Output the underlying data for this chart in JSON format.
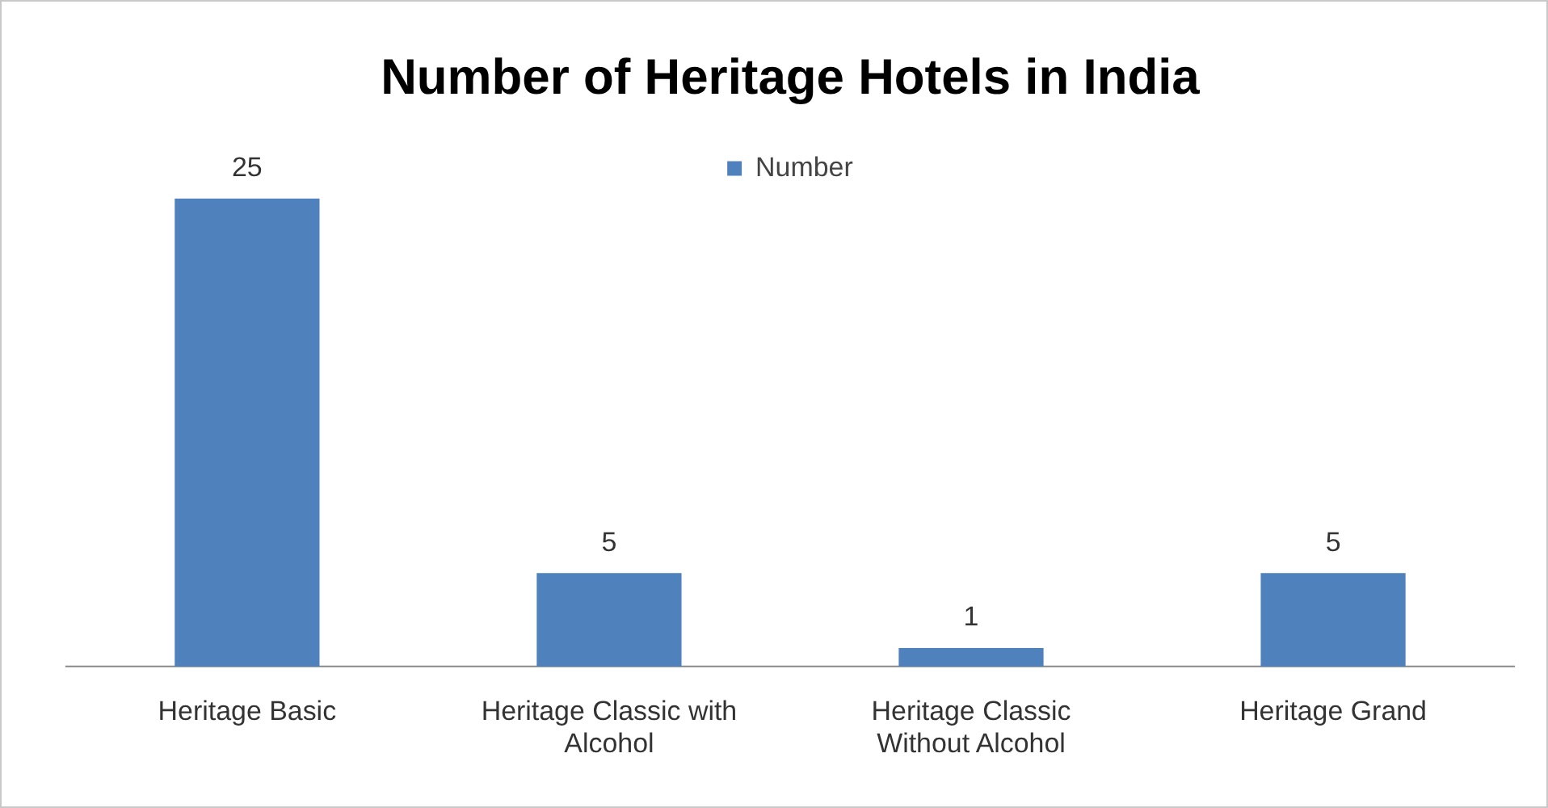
{
  "chart_data": {
    "type": "bar",
    "title": "Number of Heritage Hotels in India",
    "categories": [
      "Heritage Basic",
      "Heritage Classic with Alcohol",
      "Heritage Classic Without Alcohol",
      "Heritage Grand"
    ],
    "series": [
      {
        "name": "Number",
        "color": "#4f81bd",
        "values": [
          25,
          5,
          1,
          5
        ]
      }
    ],
    "data_labels": true,
    "legend": "top",
    "grid": false,
    "tick_labels": "x"
  }
}
